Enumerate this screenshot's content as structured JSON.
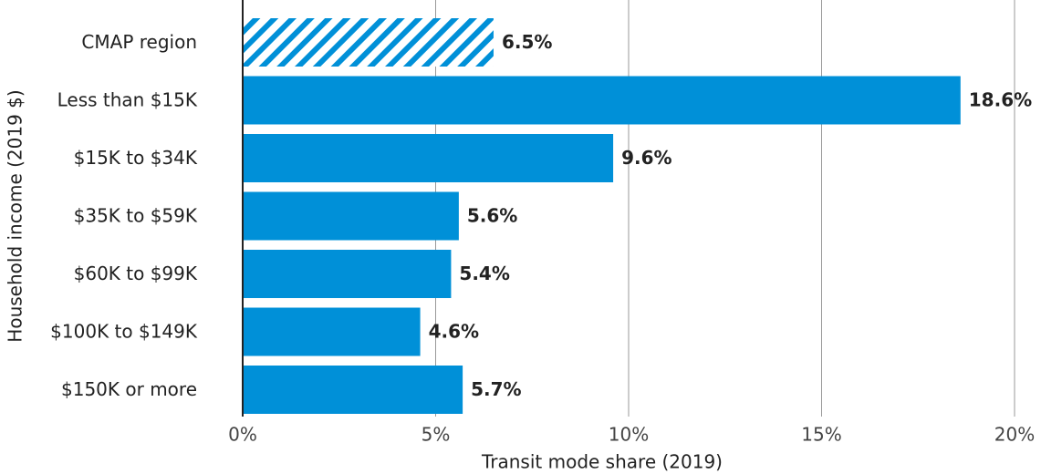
{
  "chart_data": {
    "type": "bar",
    "orientation": "horizontal",
    "categories": [
      "CMAP region",
      "Less than $15K",
      "$15K to $34K",
      "$35K to $59K",
      "$60K to $99K",
      "$100K to $149K",
      "$150K or more"
    ],
    "values": [
      6.5,
      18.6,
      9.6,
      5.6,
      5.4,
      4.6,
      5.7
    ],
    "value_labels": [
      "6.5%",
      "18.6%",
      "9.6%",
      "5.6%",
      "5.4%",
      "4.6%",
      "5.7%"
    ],
    "hatched": [
      true,
      false,
      false,
      false,
      false,
      false,
      false
    ],
    "color": "#0090d8",
    "xlabel": "Transit mode share (2019)",
    "ylabel": "Household income (2019 $)",
    "xlim": [
      0,
      20
    ],
    "xticks": [
      {
        "value": 0,
        "label": "0%"
      },
      {
        "value": 5,
        "label": "5%"
      },
      {
        "value": 10,
        "label": "10%"
      },
      {
        "value": 15,
        "label": "15%"
      },
      {
        "value": 20,
        "label": "20%"
      }
    ],
    "grid": true
  }
}
